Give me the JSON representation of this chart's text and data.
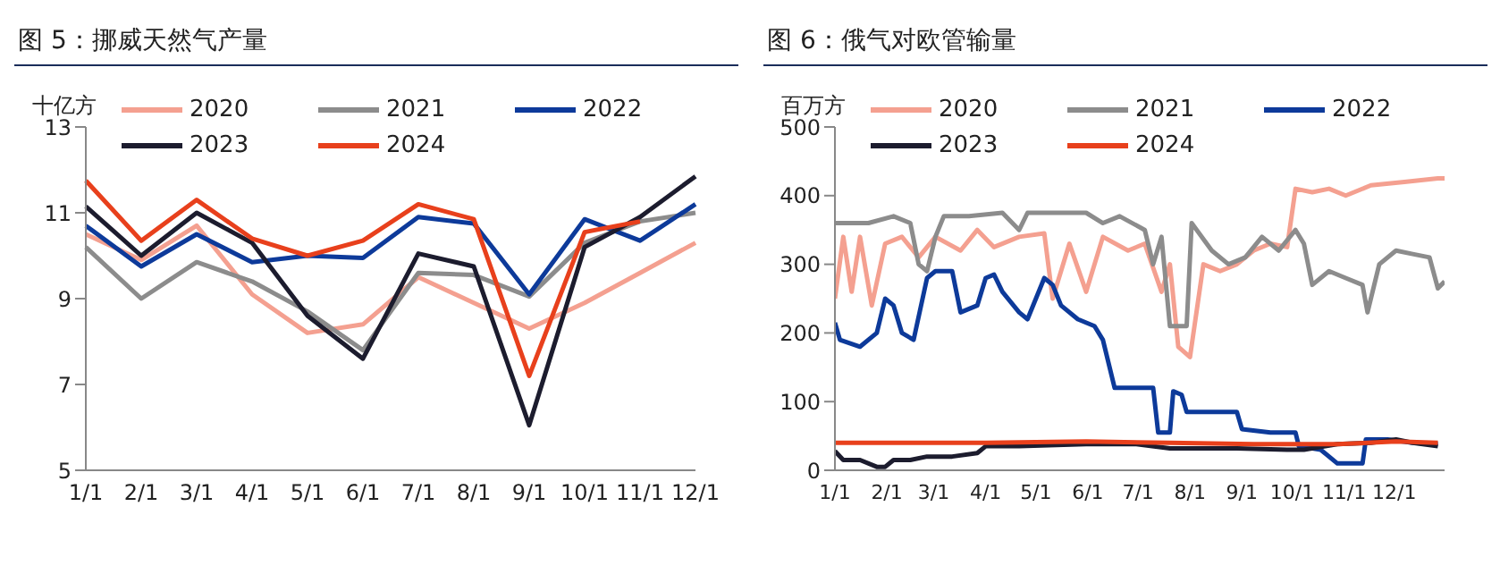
{
  "chart_data": [
    {
      "type": "line",
      "title": "图 5：挪威天然气产量",
      "ylabel": "十亿方",
      "legend": "top",
      "grid": false,
      "marker": "none",
      "line_style": "solid",
      "categories": [
        "1/1",
        "2/1",
        "3/1",
        "4/1",
        "5/1",
        "6/1",
        "7/1",
        "8/1",
        "9/1",
        "10/1",
        "11/1",
        "12/1"
      ],
      "ylim": [
        5,
        13
      ],
      "yticks": [
        5,
        7,
        9,
        11,
        13
      ],
      "series": [
        {
          "name": "2020",
          "color": "#f4a090",
          "values": [
            10.5,
            9.9,
            10.7,
            9.1,
            8.2,
            8.4,
            9.5,
            8.9,
            8.3,
            8.9,
            9.6,
            10.3
          ]
        },
        {
          "name": "2021",
          "color": "#8c8c8c",
          "values": [
            10.2,
            9.0,
            9.85,
            9.4,
            8.7,
            7.8,
            9.6,
            9.55,
            9.05,
            10.3,
            10.8,
            11.0
          ]
        },
        {
          "name": "2022",
          "color": "#0d3a9a",
          "values": [
            10.7,
            9.75,
            10.5,
            9.85,
            10.0,
            9.95,
            10.9,
            10.75,
            9.1,
            10.85,
            10.35,
            11.2
          ]
        },
        {
          "name": "2023",
          "color": "#1c1c2e",
          "values": [
            11.15,
            10.0,
            11.0,
            10.3,
            8.6,
            7.6,
            10.05,
            9.75,
            6.05,
            10.2,
            10.9,
            11.85
          ]
        },
        {
          "name": "2024",
          "color": "#e8401c",
          "values": [
            11.75,
            10.35,
            11.3,
            10.4,
            10.0,
            10.35,
            11.2,
            10.85,
            7.2,
            10.55,
            10.8,
            null
          ]
        }
      ]
    },
    {
      "type": "line",
      "title": "图 6：俄气对欧管输量",
      "ylabel": "百万方",
      "legend": "top",
      "grid": false,
      "marker": "none",
      "line_style": "solid",
      "xlim": [
        "--01-01",
        "--12-31"
      ],
      "xticks": [
        {
          "value": "--01-01",
          "label": "1/1"
        },
        {
          "value": "--02-01",
          "label": "2/1"
        },
        {
          "value": "--03-01",
          "label": "3/1"
        },
        {
          "value": "--04-01",
          "label": "4/1"
        },
        {
          "value": "--05-01",
          "label": "5/1"
        },
        {
          "value": "--06-01",
          "label": "6/1"
        },
        {
          "value": "--07-01",
          "label": "7/1"
        },
        {
          "value": "--08-01",
          "label": "8/1"
        },
        {
          "value": "--09-01",
          "label": "9/1"
        },
        {
          "value": "--10-01",
          "label": "10/1"
        },
        {
          "value": "--11-01",
          "label": "11/1"
        },
        {
          "value": "--12-01",
          "label": "12/1"
        }
      ],
      "ylim": [
        0,
        500
      ],
      "yticks": [
        0,
        100,
        200,
        300,
        400,
        500
      ],
      "series": [
        {
          "name": "2020",
          "color": "#f4a090",
          "x": [
            "--01-01",
            "--01-06",
            "--01-11",
            "--01-16",
            "--01-23",
            "--01-31",
            "--02-10",
            "--02-20",
            "--03-02",
            "--03-17",
            "--03-27",
            "--04-06",
            "--04-21",
            "--05-06",
            "--05-11",
            "--05-21",
            "--05-31",
            "--06-10",
            "--06-25",
            "--07-05",
            "--07-15",
            "--07-20",
            "--07-25",
            "--08-01",
            "--08-09",
            "--08-19",
            "--08-29",
            "--09-08",
            "--09-18",
            "--09-28",
            "--10-03",
            "--10-13",
            "--10-23",
            "--11-02",
            "--11-17",
            "--12-07",
            "--12-27",
            "--12-31"
          ],
          "values": [
            250,
            340,
            260,
            340,
            240,
            330,
            340,
            310,
            340,
            320,
            350,
            325,
            340,
            345,
            250,
            330,
            260,
            340,
            320,
            330,
            260,
            300,
            180,
            165,
            300,
            290,
            300,
            320,
            330,
            325,
            410,
            405,
            410,
            400,
            415,
            420,
            425,
            425
          ]
        },
        {
          "name": "2021",
          "color": "#8c8c8c",
          "x": [
            "--01-01",
            "--01-21",
            "--02-05",
            "--02-15",
            "--02-20",
            "--02-25",
            "--03-02",
            "--03-07",
            "--03-22",
            "--04-11",
            "--04-21",
            "--04-26",
            "--05-31",
            "--06-10",
            "--06-20",
            "--07-05",
            "--07-10",
            "--07-15",
            "--07-20",
            "--07-30",
            "--08-02",
            "--08-14",
            "--08-24",
            "--09-03",
            "--09-13",
            "--09-23",
            "--10-03",
            "--10-08",
            "--10-13",
            "--10-23",
            "--11-02",
            "--11-12",
            "--11-15",
            "--11-22",
            "--12-02",
            "--12-12",
            "--12-22",
            "--12-27",
            "--12-31"
          ],
          "values": [
            360,
            360,
            370,
            360,
            300,
            290,
            340,
            370,
            370,
            375,
            350,
            375,
            375,
            360,
            370,
            350,
            300,
            340,
            210,
            210,
            360,
            320,
            300,
            310,
            340,
            320,
            350,
            330,
            270,
            290,
            280,
            270,
            230,
            300,
            320,
            315,
            310,
            265,
            275
          ]
        },
        {
          "name": "2022",
          "color": "#0d3a9a",
          "x": [
            "--01-01",
            "--01-04",
            "--01-16",
            "--01-26",
            "--01-31",
            "--02-05",
            "--02-10",
            "--02-17",
            "--02-25",
            "--03-02",
            "--03-12",
            "--03-17",
            "--03-27",
            "--04-01",
            "--04-06",
            "--04-11",
            "--04-21",
            "--04-26",
            "--05-06",
            "--05-11",
            "--05-16",
            "--05-26",
            "--06-05",
            "--06-10",
            "--06-17",
            "--06-30",
            "--07-10",
            "--07-13",
            "--07-20",
            "--07-22",
            "--07-27",
            "--07-30",
            "--08-19",
            "--08-29",
            "--09-01",
            "--09-18",
            "--10-03",
            "--10-05",
            "--10-18",
            "--10-28",
            "--11-12",
            "--11-14",
            "--11-27",
            "--12-12",
            "--12-27"
          ],
          "values": [
            215,
            190,
            180,
            200,
            250,
            240,
            200,
            190,
            280,
            290,
            290,
            230,
            240,
            280,
            285,
            260,
            230,
            220,
            280,
            270,
            240,
            220,
            210,
            190,
            120,
            120,
            120,
            55,
            55,
            115,
            110,
            85,
            85,
            85,
            60,
            55,
            55,
            35,
            30,
            10,
            10,
            45,
            45,
            40,
            38
          ]
        },
        {
          "name": "2023",
          "color": "#1c1c2e",
          "x": [
            "--01-01",
            "--01-06",
            "--01-16",
            "--01-26",
            "--01-31",
            "--02-05",
            "--02-15",
            "--02-25",
            "--03-12",
            "--03-27",
            "--04-01",
            "--04-21",
            "--05-31",
            "--06-30",
            "--07-20",
            "--08-29",
            "--09-28",
            "--10-08",
            "--10-28",
            "--11-17",
            "--12-02",
            "--12-12",
            "--12-27"
          ],
          "values": [
            28,
            15,
            15,
            5,
            5,
            15,
            15,
            20,
            20,
            25,
            35,
            35,
            38,
            38,
            32,
            32,
            30,
            30,
            38,
            40,
            45,
            40,
            35
          ]
        },
        {
          "name": "2024",
          "color": "#e8401c",
          "x": [
            "--01-01",
            "--01-31",
            "--04-01",
            "--05-31",
            "--07-20",
            "--09-08",
            "--10-28",
            "--12-02",
            "--12-27"
          ],
          "values": [
            40,
            40,
            40,
            42,
            40,
            38,
            38,
            42,
            40
          ]
        }
      ]
    }
  ]
}
